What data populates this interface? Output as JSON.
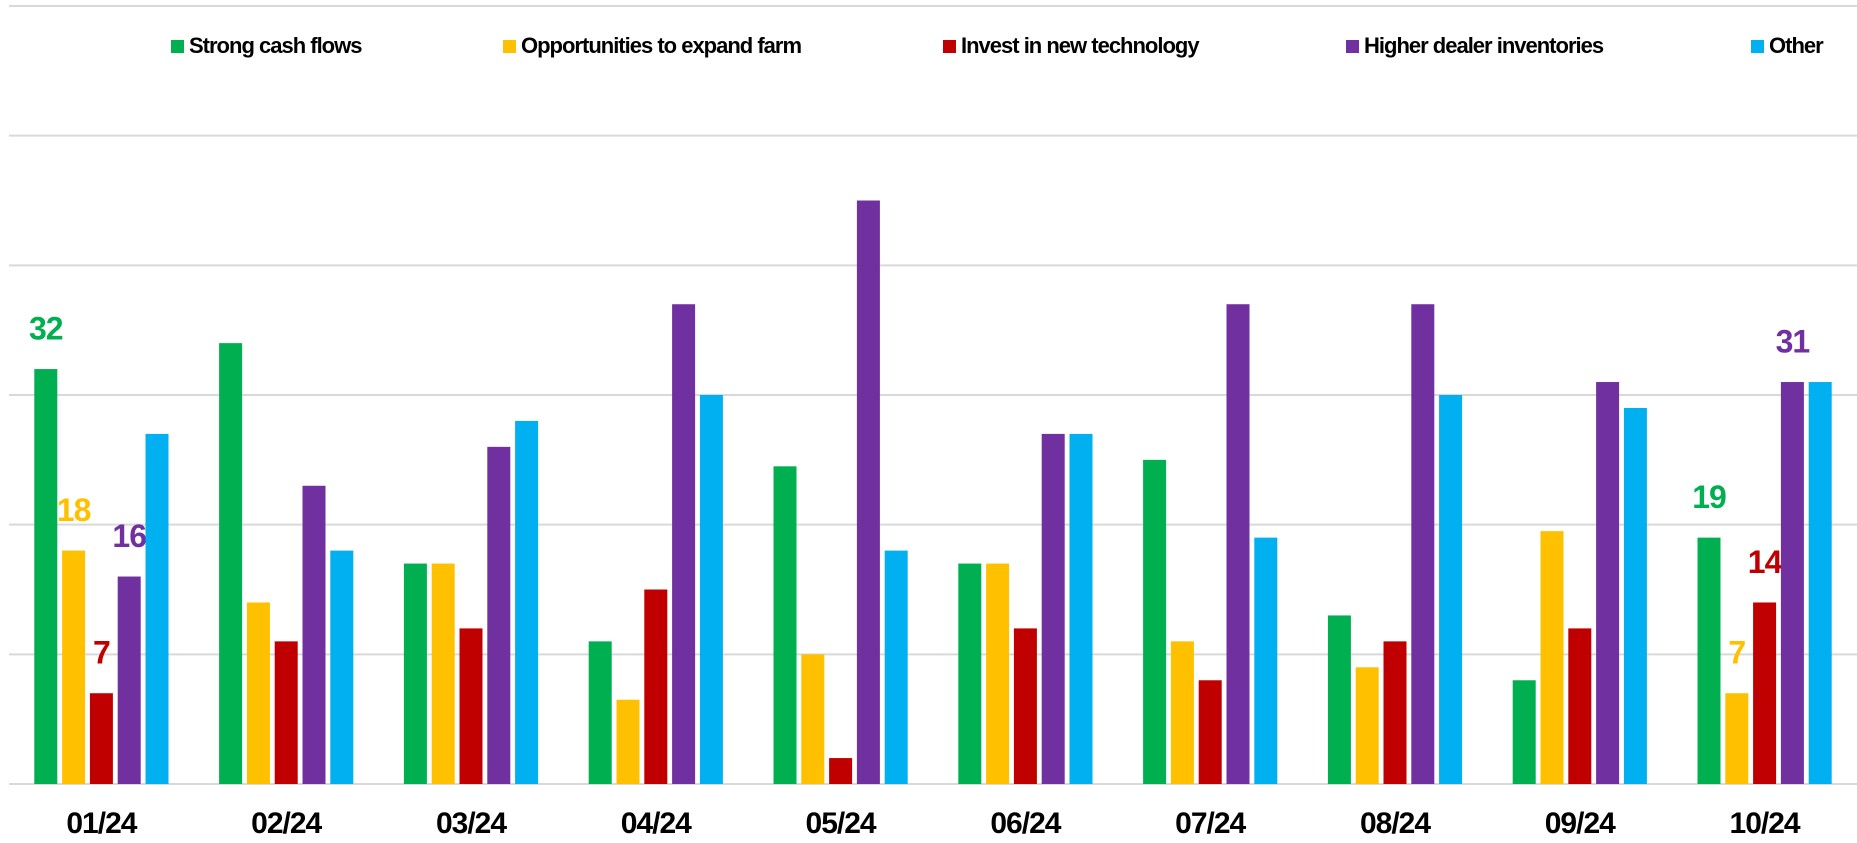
{
  "chart_data": {
    "type": "bar",
    "categories": [
      "01/24",
      "02/24",
      "03/24",
      "04/24",
      "05/24",
      "06/24",
      "07/24",
      "08/24",
      "09/24",
      "10/24"
    ],
    "series": [
      {
        "name": "Strong cash flows",
        "color": "#00b050",
        "values": [
          32,
          34,
          17,
          11,
          24.5,
          17,
          25,
          13,
          8,
          19
        ],
        "value_labels": [
          "32",
          null,
          null,
          null,
          null,
          null,
          null,
          null,
          null,
          "19"
        ]
      },
      {
        "name": "Opportunities to expand farm",
        "color": "#ffc000",
        "values": [
          18,
          14,
          17,
          6.5,
          10,
          17,
          11,
          9,
          19.5,
          7
        ],
        "value_labels": [
          "18",
          null,
          null,
          null,
          null,
          null,
          null,
          null,
          null,
          "7"
        ]
      },
      {
        "name": "Invest in new technology",
        "color": "#c00000",
        "values": [
          7,
          11,
          12,
          15,
          2,
          12,
          8,
          11,
          12,
          14
        ],
        "value_labels": [
          "7",
          null,
          null,
          null,
          null,
          null,
          null,
          null,
          null,
          "14"
        ]
      },
      {
        "name": "Higher dealer inventories",
        "color": "#7030a0",
        "values": [
          16,
          23,
          26,
          37,
          45,
          27,
          37,
          37,
          31,
          31
        ],
        "value_labels": [
          "16",
          null,
          null,
          null,
          null,
          null,
          null,
          null,
          null,
          "31"
        ]
      },
      {
        "name": "Other",
        "color": "#00b0f0",
        "values": [
          27,
          18,
          28,
          30,
          18,
          27,
          19,
          30,
          29,
          31
        ]
      }
    ],
    "ylim": [
      0,
      60
    ],
    "yticks": [
      0,
      10,
      20,
      30,
      40,
      50,
      60
    ],
    "grid": true
  }
}
